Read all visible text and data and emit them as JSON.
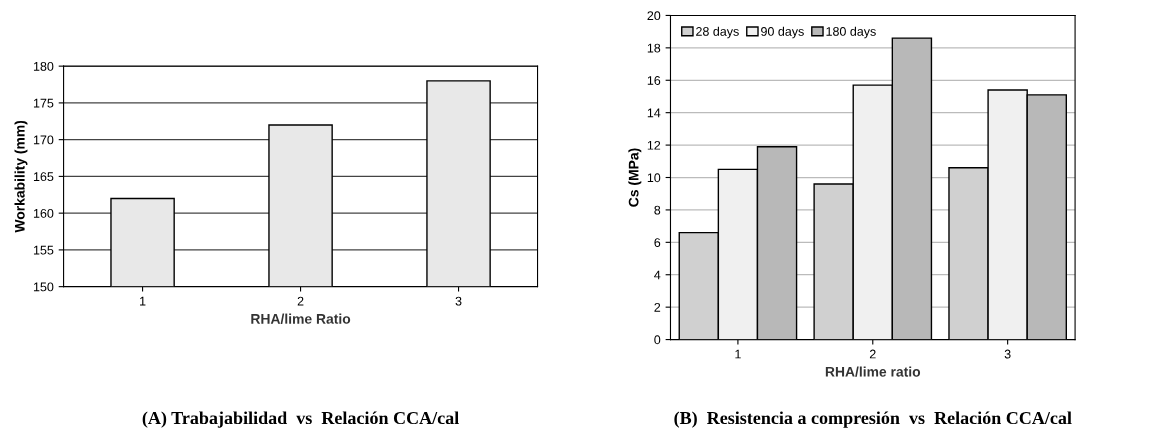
{
  "chart_data": [
    {
      "type": "bar",
      "title": "(A) Trabajabilidad  vs  Relación CCA/cal",
      "xlabel": "RHA/lime Ratio",
      "ylabel": "Workability (mm)",
      "categories": [
        "1",
        "2",
        "3"
      ],
      "series": [
        {
          "color": "#e8e8e8",
          "values": [
            162,
            172,
            178
          ]
        }
      ],
      "ylim": [
        150,
        180
      ],
      "yticks": [
        150,
        155,
        160,
        165,
        170,
        175,
        180
      ],
      "grid": "y",
      "legend": false
    },
    {
      "type": "bar",
      "title": "(B)  Resistencia a compresión  vs  Relación CCA/cal",
      "xlabel": "RHA/lime ratio",
      "ylabel": "Cs (MPa)",
      "categories": [
        "1",
        "2",
        "3"
      ],
      "series": [
        {
          "name": "28 days",
          "color": "#d0d0d0",
          "values": [
            6.6,
            9.6,
            10.6
          ]
        },
        {
          "name": "90 days",
          "color": "#f0f0f0",
          "values": [
            10.5,
            15.7,
            15.4
          ]
        },
        {
          "name": "180 days",
          "color": "#b8b8b8",
          "values": [
            11.9,
            18.6,
            15.1
          ]
        }
      ],
      "ylim": [
        0,
        20
      ],
      "yticks": [
        0,
        2,
        4,
        6,
        8,
        10,
        12,
        14,
        16,
        18,
        20
      ],
      "grid": "y",
      "legend": "top left"
    }
  ]
}
